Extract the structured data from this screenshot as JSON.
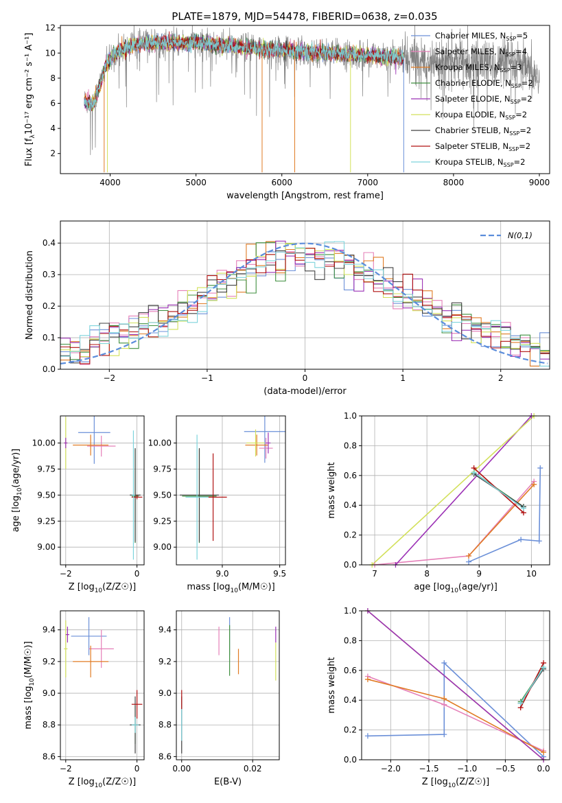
{
  "figure_title": "PLATE=1879, MJD=54478, FIBERID=0638, z=0.035",
  "colors": {
    "chab_miles": "#6a8fd8",
    "salp_miles": "#e57fb8",
    "krou_miles": "#e07b23",
    "chab_elodie": "#3f8f3f",
    "salp_elodie": "#9b30b5",
    "krou_elodie": "#d2e05a",
    "chab_stelib": "#404040",
    "salp_stelib": "#b01010",
    "krou_stelib": "#7dd4dc",
    "data": "#808080",
    "gauss": "#5b8ddb"
  },
  "legend_spectrum": [
    {
      "key": "chab_miles",
      "pre": "Chabrier MILES, N",
      "sub": "SSP",
      "post": "=5"
    },
    {
      "key": "salp_miles",
      "pre": "Salpeter MILES, N",
      "sub": "SSP",
      "post": "=4"
    },
    {
      "key": "krou_miles",
      "pre": "Kroupa MILES, N",
      "sub": "SSP",
      "post": "=3"
    },
    {
      "key": "chab_elodie",
      "pre": "Chabrier ELODIE, N",
      "sub": "SSP",
      "post": "=2"
    },
    {
      "key": "salp_elodie",
      "pre": "Salpeter ELODIE, N",
      "sub": "SSP",
      "post": "=2"
    },
    {
      "key": "krou_elodie",
      "pre": "Kroupa ELODIE, N",
      "sub": "SSP",
      "post": "=2"
    },
    {
      "key": "chab_stelib",
      "pre": "Chabrier STELIB, N",
      "sub": "SSP",
      "post": "=2"
    },
    {
      "key": "salp_stelib",
      "pre": "Salpeter STELIB, N",
      "sub": "SSP",
      "post": "=2"
    },
    {
      "key": "krou_stelib",
      "pre": "Kroupa STELIB, N",
      "sub": "SSP",
      "post": "=2"
    }
  ],
  "chart_data": [
    {
      "id": "spectrum",
      "type": "line",
      "xlabel": "wavelength [Angstrom, rest frame]",
      "ylabel_pre": "Flux [f",
      "ylabel_sub": "λ",
      "ylabel_post": "10⁻¹⁷ erg cm⁻² s⁻¹ A⁻¹]",
      "xlim": [
        3420,
        9120
      ],
      "ylim": [
        0.4,
        12.2
      ],
      "xticks": [
        4000,
        5000,
        6000,
        7000,
        8000,
        9000
      ],
      "yticks": [
        2,
        4,
        6,
        8,
        10,
        12
      ],
      "continuum": [
        [
          3700,
          6.2
        ],
        [
          3800,
          5.9
        ],
        [
          3880,
          7.5
        ],
        [
          3950,
          9.0
        ],
        [
          4000,
          9.5
        ],
        [
          4100,
          10.2
        ],
        [
          4300,
          10.7
        ],
        [
          4500,
          10.8
        ],
        [
          5000,
          10.8
        ],
        [
          5500,
          10.5
        ],
        [
          6000,
          10.2
        ],
        [
          6500,
          10.0
        ],
        [
          7000,
          9.8
        ],
        [
          7400,
          9.6
        ],
        [
          7500,
          9.5
        ],
        [
          8000,
          9.3
        ],
        [
          8500,
          9.2
        ],
        [
          8800,
          9.0
        ],
        [
          8900,
          8.3
        ],
        [
          9000,
          8.0
        ]
      ],
      "model_end": 7420,
      "data_end": 9000
    },
    {
      "id": "residuals",
      "type": "histogram",
      "xlabel": "(data-model)/error",
      "ylabel": "Normed distribution",
      "xlim": [
        -2.5,
        2.5
      ],
      "ylim": [
        0,
        0.47
      ],
      "xticks": [
        -2,
        -1,
        0,
        1,
        2
      ],
      "yticks": [
        0.0,
        0.1,
        0.2,
        0.3,
        0.4
      ],
      "bin_width": 0.1,
      "reference_label": "N(0,1)"
    },
    {
      "id": "age_vs_Z",
      "type": "scatter",
      "xlabel_pre": "Z [log",
      "xlabel_sub": "10",
      "xlabel_post": "(Z/Z☉)]",
      "ylabel_pre": "age  [log",
      "ylabel_sub": "10",
      "ylabel_post": "(age/yr)]",
      "xlim": [
        -2.15,
        0.2
      ],
      "ylim": [
        8.83,
        10.26
      ],
      "xticks": [
        -2,
        0
      ],
      "yticks": [
        9.0,
        9.25,
        9.5,
        9.75,
        10.0
      ],
      "points": [
        {
          "key": "chab_miles",
          "x": -1.2,
          "y": 10.1,
          "xerr": 0.45,
          "yerr": 0.3
        },
        {
          "key": "salp_miles",
          "x": -1.0,
          "y": 9.97,
          "xerr": 0.4,
          "yerr": 0.1
        },
        {
          "key": "krou_miles",
          "x": -1.3,
          "y": 9.98,
          "xerr": 0.5,
          "yerr": 0.1
        },
        {
          "key": "krou_elodie",
          "x": -2.0,
          "y": 10.0,
          "xerr": 0.05,
          "yerr": 0.25
        },
        {
          "key": "salp_elodie",
          "x": -2.0,
          "y": 10.0,
          "xerr": 0.05,
          "yerr": 0.05
        },
        {
          "key": "chab_elodie",
          "x": -0.05,
          "y": 9.49,
          "xerr": 0.1,
          "yerr": 0.45
        },
        {
          "key": "chab_stelib",
          "x": -0.05,
          "y": 9.5,
          "xerr": 0.15,
          "yerr": 0.45
        },
        {
          "key": "salp_stelib",
          "x": 0.0,
          "y": 9.48,
          "xerr": 0.15,
          "yerr": 0.02
        },
        {
          "key": "krou_stelib",
          "x": -0.1,
          "y": 9.5,
          "xerr": 0.05,
          "yerr": 0.62
        }
      ]
    },
    {
      "id": "age_vs_mass",
      "type": "scatter",
      "xlabel_pre": "mass [log",
      "xlabel_sub": "10",
      "xlabel_post": "(M/M☉)]",
      "xlim": [
        8.6,
        9.55
      ],
      "ylim": [
        8.83,
        10.26
      ],
      "xticks": [
        9.0,
        9.5
      ],
      "yticks": [
        9.0,
        9.25,
        9.5,
        9.75,
        10.0
      ],
      "points": [
        {
          "key": "chab_miles",
          "x": 9.37,
          "y": 10.11,
          "xerr": 0.18,
          "yerr": 0.3
        },
        {
          "key": "salp_miles",
          "x": 9.38,
          "y": 9.95,
          "xerr": 0.06,
          "yerr": 0.1
        },
        {
          "key": "krou_miles",
          "x": 9.3,
          "y": 9.98,
          "xerr": 0.1,
          "yerr": 0.1
        },
        {
          "key": "krou_elodie",
          "x": 9.29,
          "y": 10.0,
          "xerr": 0.08,
          "yerr": 0.13
        },
        {
          "key": "salp_elodie",
          "x": 9.4,
          "y": 10.0,
          "xerr": 0.02,
          "yerr": 0.1
        },
        {
          "key": "chab_elodie",
          "x": 8.8,
          "y": 9.49,
          "xerr": 0.15,
          "yerr": 0.45
        },
        {
          "key": "chab_stelib",
          "x": 8.8,
          "y": 9.5,
          "xerr": 0.17,
          "yerr": 0.45
        },
        {
          "key": "salp_stelib",
          "x": 8.92,
          "y": 9.48,
          "xerr": 0.12,
          "yerr": 0.42
        },
        {
          "key": "krou_stelib",
          "x": 8.78,
          "y": 9.48,
          "xerr": 0.1,
          "yerr": 0.6
        }
      ]
    },
    {
      "id": "weight_vs_age",
      "type": "line",
      "xlabel_pre": "age  [log",
      "xlabel_sub": "10",
      "xlabel_post": "(age/yr)]",
      "ylabel": "mass weight",
      "xlim": [
        6.75,
        10.35
      ],
      "ylim": [
        0,
        1
      ],
      "xticks": [
        7,
        8,
        9,
        10
      ],
      "yticks": [
        0.0,
        0.2,
        0.4,
        0.6,
        0.8,
        1.0
      ],
      "series": [
        {
          "key": "chab_miles",
          "x": [
            8.8,
            9.8,
            10.15,
            10.17
          ],
          "y": [
            0.02,
            0.17,
            0.16,
            0.65
          ]
        },
        {
          "key": "salp_miles",
          "x": [
            7.0,
            8.8,
            10.05
          ],
          "y": [
            0.0,
            0.06,
            0.56
          ]
        },
        {
          "key": "krou_miles",
          "x": [
            8.8,
            10.05
          ],
          "y": [
            0.06,
            0.54
          ]
        },
        {
          "key": "chab_elodie",
          "x": [
            8.9,
            9.85
          ],
          "y": [
            0.62,
            0.39
          ]
        },
        {
          "key": "salp_elodie",
          "x": [
            7.4,
            10.0
          ],
          "y": [
            0.0,
            1.0
          ]
        },
        {
          "key": "krou_elodie",
          "x": [
            6.95,
            10.05
          ],
          "y": [
            0.0,
            1.0
          ]
        },
        {
          "key": "chab_stelib",
          "x": [
            8.9,
            9.85
          ],
          "y": [
            0.61,
            0.39
          ]
        },
        {
          "key": "salp_stelib",
          "x": [
            8.9,
            9.85
          ],
          "y": [
            0.65,
            0.35
          ]
        },
        {
          "key": "krou_stelib",
          "x": [
            8.9,
            9.85
          ],
          "y": [
            0.62,
            0.38
          ]
        }
      ]
    },
    {
      "id": "mass_vs_Z",
      "type": "scatter",
      "xlabel_pre": "Z [log",
      "xlabel_sub": "10",
      "xlabel_post": "(Z/Z☉)]",
      "ylabel_pre": "mass [log",
      "ylabel_sub": "10",
      "ylabel_post": "(M/M☉)]",
      "xlim": [
        -2.15,
        0.2
      ],
      "ylim": [
        8.58,
        9.52
      ],
      "xticks": [
        -2,
        0
      ],
      "yticks": [
        8.6,
        8.8,
        9.0,
        9.2,
        9.4
      ],
      "points": [
        {
          "key": "chab_miles",
          "x": -1.35,
          "y": 9.36,
          "xerr": 0.5,
          "yerr": 0.12
        },
        {
          "key": "salp_miles",
          "x": -1.0,
          "y": 9.28,
          "xerr": 0.35,
          "yerr": 0.12
        },
        {
          "key": "krou_miles",
          "x": -1.3,
          "y": 9.2,
          "xerr": 0.5,
          "yerr": 0.1
        },
        {
          "key": "krou_elodie",
          "x": -2.0,
          "y": 9.28,
          "xerr": 0.05,
          "yerr": 0.18
        },
        {
          "key": "salp_elodie",
          "x": -1.95,
          "y": 9.37,
          "xerr": 0.05,
          "yerr": 0.05
        },
        {
          "key": "chab_elodie",
          "x": -0.05,
          "y": 8.8,
          "xerr": 0.1,
          "yerr": 0.12
        },
        {
          "key": "chab_stelib",
          "x": -0.05,
          "y": 8.8,
          "xerr": 0.15,
          "yerr": 0.18
        },
        {
          "key": "salp_stelib",
          "x": 0.0,
          "y": 8.93,
          "xerr": 0.15,
          "yerr": 0.09
        },
        {
          "key": "krou_stelib",
          "x": -0.05,
          "y": 8.8,
          "xerr": 0.1,
          "yerr": 0.05
        }
      ]
    },
    {
      "id": "mass_vs_EBV",
      "type": "scatter",
      "xlabel": "E(B-V)",
      "xlim": [
        -0.0015,
        0.0275
      ],
      "ylim": [
        8.58,
        9.52
      ],
      "xticks": [
        0.0,
        0.02
      ],
      "yticks": [
        8.6,
        8.8,
        9.0,
        9.2,
        9.4
      ],
      "points": [
        {
          "key": "chab_miles",
          "x": 0.0135,
          "y": 9.36,
          "yerr": 0.12
        },
        {
          "key": "salp_miles",
          "x": 0.0105,
          "y": 9.33,
          "yerr": 0.09
        },
        {
          "key": "krou_miles",
          "x": 0.016,
          "y": 9.2,
          "yerr": 0.08
        },
        {
          "key": "krou_elodie",
          "x": 0.0265,
          "y": 9.2,
          "yerr": 0.12
        },
        {
          "key": "salp_elodie",
          "x": 0.0265,
          "y": 9.37,
          "yerr": 0.05
        },
        {
          "key": "chab_elodie",
          "x": 0.0135,
          "y": 9.27,
          "yerr": 0.16
        },
        {
          "key": "chab_stelib",
          "x": 0.0,
          "y": 8.8,
          "yerr": 0.18
        },
        {
          "key": "salp_stelib",
          "x": 0.0,
          "y": 8.96,
          "yerr": 0.06
        },
        {
          "key": "krou_stelib",
          "x": 0.0,
          "y": 8.8,
          "yerr": 0.1
        }
      ]
    },
    {
      "id": "weight_vs_Z",
      "type": "line",
      "xlabel_pre": "Z [log",
      "xlabel_sub": "10",
      "xlabel_post": "(Z/Z☉)]",
      "ylabel": "mass weight",
      "xlim": [
        -2.38,
        0.08
      ],
      "ylim": [
        0,
        1
      ],
      "xticks": [
        -2.0,
        -1.5,
        -1.0,
        -0.5,
        0.0
      ],
      "yticks": [
        0.0,
        0.2,
        0.4,
        0.6,
        0.8,
        1.0
      ],
      "series": [
        {
          "key": "chab_miles",
          "x": [
            -2.3,
            -1.3,
            -1.3,
            0.0
          ],
          "y": [
            0.16,
            0.17,
            0.65,
            0.02
          ]
        },
        {
          "key": "salp_miles",
          "x": [
            -2.3,
            -1.3,
            0.0
          ],
          "y": [
            0.56,
            0.37,
            0.06
          ]
        },
        {
          "key": "krou_miles",
          "x": [
            -2.3,
            -1.3,
            0.0
          ],
          "y": [
            0.54,
            0.41,
            0.05
          ]
        },
        {
          "key": "krou_elodie",
          "x": [
            -2.3,
            0.0
          ],
          "y": [
            1.0,
            0.0
          ]
        },
        {
          "key": "salp_elodie",
          "x": [
            -2.3,
            0.0
          ],
          "y": [
            1.0,
            0.0
          ]
        },
        {
          "key": "chab_elodie",
          "x": [
            -0.3,
            0.0
          ],
          "y": [
            0.39,
            0.62
          ]
        },
        {
          "key": "chab_stelib",
          "x": [
            -0.3,
            0.0
          ],
          "y": [
            0.38,
            0.61
          ]
        },
        {
          "key": "salp_stelib",
          "x": [
            -0.3,
            0.0
          ],
          "y": [
            0.35,
            0.65
          ]
        },
        {
          "key": "krou_stelib",
          "x": [
            -0.3,
            0.0
          ],
          "y": [
            0.38,
            0.62
          ]
        }
      ]
    }
  ]
}
